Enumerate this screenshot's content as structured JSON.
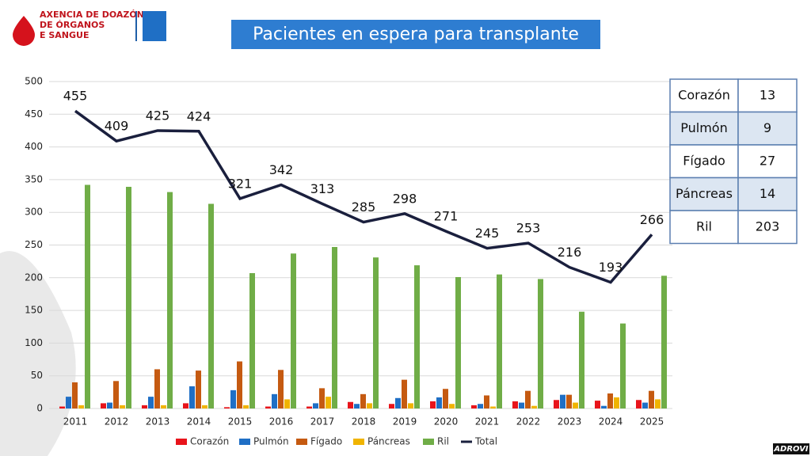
{
  "header": {
    "logo_lines": [
      "AXENCIA DE DOAZÓN",
      "DE ÓRGANOS",
      "E SANGUE"
    ],
    "watermark": "ADROVI"
  },
  "chart_data": {
    "type": "bar",
    "title": "Pacientes en espera para transplante",
    "categories": [
      "2011",
      "2012",
      "2013",
      "2014",
      "2015",
      "2016",
      "2017",
      "2018",
      "2019",
      "2020",
      "2021",
      "2022",
      "2023",
      "2024",
      "2025"
    ],
    "series": [
      {
        "name": "Corazón",
        "color": "#e8141b",
        "values": [
          3,
          8,
          5,
          8,
          2,
          3,
          3,
          10,
          7,
          11,
          5,
          11,
          13,
          12,
          13
        ]
      },
      {
        "name": "Pulmón",
        "color": "#1f6fc5",
        "values": [
          18,
          9,
          18,
          34,
          28,
          22,
          8,
          7,
          16,
          17,
          7,
          9,
          21,
          4,
          9
        ]
      },
      {
        "name": "Fígado",
        "color": "#c55a11",
        "values": [
          40,
          42,
          60,
          58,
          72,
          59,
          31,
          22,
          44,
          30,
          20,
          27,
          21,
          23,
          27
        ]
      },
      {
        "name": "Páncreas",
        "color": "#f0b400",
        "values": [
          5,
          5,
          5,
          5,
          5,
          14,
          18,
          8,
          8,
          7,
          3,
          4,
          9,
          17,
          14
        ]
      },
      {
        "name": "Ril",
        "color": "#70ad47",
        "values": [
          342,
          339,
          331,
          313,
          207,
          237,
          247,
          231,
          219,
          201,
          205,
          198,
          148,
          130,
          203
        ]
      },
      {
        "name": "Total",
        "color": "#1a1f3d",
        "type": "line",
        "values": [
          455,
          409,
          425,
          424,
          321,
          342,
          313,
          285,
          298,
          271,
          245,
          253,
          216,
          193,
          266
        ]
      }
    ],
    "ylim": [
      0,
      500
    ],
    "yticks": [
      0,
      50,
      100,
      150,
      200,
      250,
      300,
      350,
      400,
      450,
      500
    ],
    "grid": true,
    "legend": "bottom"
  },
  "table": {
    "rows": [
      [
        "Corazón",
        "13"
      ],
      [
        "Pulmón",
        "9"
      ],
      [
        "Fígado",
        "27"
      ],
      [
        "Páncreas",
        "14"
      ],
      [
        "Ril",
        "203"
      ]
    ]
  }
}
